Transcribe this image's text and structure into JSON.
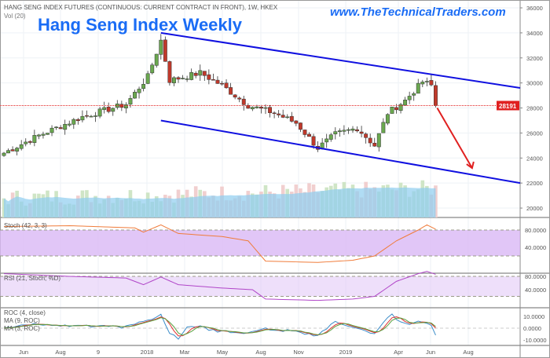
{
  "header": {
    "symbol_desc": "HANG SENG INDEX FUTURES (CONTINUOUS: CURRENT CONTRACT IN FRONT), 1W, HKEX",
    "vol_label": "Vol (20)",
    "title": "Hang Seng Index Weekly",
    "url": "www.TheTechnicalTraders.com"
  },
  "colors": {
    "up": "#6aa84f",
    "down": "#c0392b",
    "channel": "#1010e0",
    "arrow": "#e02020",
    "stoch": "#f07c3a",
    "rsi": "#b045c8",
    "roc": "#3d8ec9",
    "ma9": "#e03030",
    "ma3": "#5aa040",
    "band": "#d9b8f5"
  },
  "chart_data": {
    "type": "candlestick",
    "title": "Hang Seng Index Weekly",
    "price_axis": {
      "ticks": [
        "36000",
        "34000",
        "32000",
        "30000",
        "28000",
        "26000",
        "24000",
        "22000",
        "20000"
      ],
      "range": [
        19500,
        36500
      ]
    },
    "last_price": "28191",
    "time_axis": [
      "Jun",
      "Aug",
      "9",
      "2018",
      "Mar",
      "May",
      "Aug",
      "Nov",
      "2019",
      "Apr",
      "Jun",
      "Aug"
    ],
    "weeks": 100,
    "close_keypoints": [
      [
        0,
        24400
      ],
      [
        8,
        25800
      ],
      [
        18,
        27300
      ],
      [
        28,
        28300
      ],
      [
        33,
        30500
      ],
      [
        36,
        33400
      ],
      [
        38,
        30200
      ],
      [
        45,
        30800
      ],
      [
        50,
        29800
      ],
      [
        56,
        28200
      ],
      [
        62,
        27600
      ],
      [
        67,
        26800
      ],
      [
        72,
        24800
      ],
      [
        76,
        25900
      ],
      [
        81,
        26400
      ],
      [
        85,
        25000
      ],
      [
        88,
        27600
      ],
      [
        92,
        28600
      ],
      [
        96,
        30100
      ],
      [
        98,
        29800
      ],
      [
        99,
        28191
      ]
    ],
    "channel": {
      "upper": [
        [
          36,
          34000
        ],
        [
          119,
          29600
        ]
      ],
      "lower": [
        [
          36,
          27000
        ],
        [
          119,
          22000
        ]
      ]
    },
    "projection_arrow": {
      "from": [
        99,
        28000
      ],
      "to": [
        107,
        23200
      ]
    },
    "stoch": {
      "label": "Stoch (42, 3, 3)",
      "ticks": [
        "80.0000",
        "40.0000"
      ],
      "bands": [
        80,
        20
      ],
      "keypoints": [
        [
          0,
          88
        ],
        [
          15,
          90
        ],
        [
          30,
          85
        ],
        [
          32,
          75
        ],
        [
          36,
          92
        ],
        [
          40,
          72
        ],
        [
          50,
          65
        ],
        [
          56,
          55
        ],
        [
          60,
          8
        ],
        [
          72,
          5
        ],
        [
          80,
          10
        ],
        [
          85,
          20
        ],
        [
          90,
          55
        ],
        [
          95,
          80
        ],
        [
          97,
          92
        ],
        [
          99,
          82
        ]
      ]
    },
    "rsi": {
      "label": "RSI (21, Stoch; %D)",
      "ticks": [
        "80.0000",
        "40.0000"
      ],
      "bands": [
        80,
        20
      ],
      "keypoints": [
        [
          0,
          88
        ],
        [
          15,
          80
        ],
        [
          28,
          75
        ],
        [
          32,
          55
        ],
        [
          36,
          78
        ],
        [
          40,
          55
        ],
        [
          50,
          45
        ],
        [
          57,
          40
        ],
        [
          60,
          12
        ],
        [
          72,
          8
        ],
        [
          80,
          12
        ],
        [
          85,
          20
        ],
        [
          90,
          65
        ],
        [
          95,
          88
        ],
        [
          97,
          95
        ],
        [
          99,
          86
        ]
      ]
    },
    "roc": {
      "labels": [
        "ROC (4, close)",
        "MA (9, ROC)",
        "MA (3, ROC)"
      ],
      "ticks": [
        "10.0000",
        "0.0000",
        "-10.0000"
      ]
    }
  }
}
